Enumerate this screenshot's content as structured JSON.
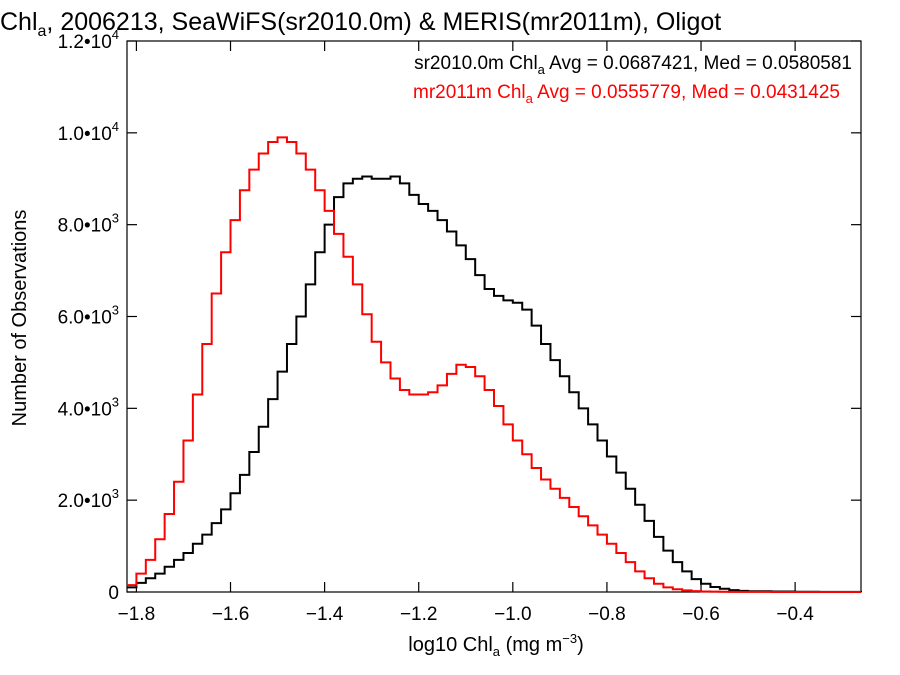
{
  "chart_data": {
    "type": "line",
    "title": {
      "prefix": "Chl",
      "sub": "a",
      "rest": ", 2006213, SeaWiFS(sr2010.0m) & MERIS(mr2011m), Oligot"
    },
    "xlabel": {
      "prefix": "log10 Chl",
      "sub": "a",
      "mid": " (mg m",
      "sup": "−3",
      "suffix": ")"
    },
    "ylabel": "Number of Observations",
    "xlim": [
      -1.82,
      -0.26
    ],
    "ylim": [
      0,
      12000
    ],
    "x_ticks": [
      {
        "value": -1.8,
        "label": "−1.8"
      },
      {
        "value": -1.6,
        "label": "−1.6"
      },
      {
        "value": -1.4,
        "label": "−1.4"
      },
      {
        "value": -1.2,
        "label": "−1.2"
      },
      {
        "value": -1.0,
        "label": "−1.0"
      },
      {
        "value": -0.8,
        "label": "−0.8"
      },
      {
        "value": -0.6,
        "label": "−0.6"
      },
      {
        "value": -0.4,
        "label": "−0.4"
      }
    ],
    "y_ticks": [
      {
        "value": 0,
        "mant": "0",
        "exp": ""
      },
      {
        "value": 2000,
        "mant": "2.0•10",
        "exp": "3"
      },
      {
        "value": 4000,
        "mant": "4.0•10",
        "exp": "3"
      },
      {
        "value": 6000,
        "mant": "6.0•10",
        "exp": "3"
      },
      {
        "value": 8000,
        "mant": "8.0•10",
        "exp": "3"
      },
      {
        "value": 10000,
        "mant": "1.0•10",
        "exp": "4"
      },
      {
        "value": 12000,
        "mant": "1.2•10",
        "exp": "4"
      }
    ],
    "legend": [
      {
        "prefix": "sr2010.0m Chl",
        "sub": "a",
        "rest": " Avg = 0.0687421, Med = 0.0580581",
        "color": "#000000"
      },
      {
        "prefix": "mr2011m Chl",
        "sub": "a",
        "rest": " Avg = 0.0555779, Med = 0.0431425",
        "color": "#ff0000"
      }
    ],
    "series": [
      {
        "color": "#000000",
        "x": [
          -1.82,
          -1.8,
          -1.78,
          -1.76,
          -1.74,
          -1.72,
          -1.7,
          -1.68,
          -1.66,
          -1.64,
          -1.62,
          -1.6,
          -1.58,
          -1.56,
          -1.54,
          -1.52,
          -1.5,
          -1.48,
          -1.46,
          -1.44,
          -1.42,
          -1.4,
          -1.38,
          -1.36,
          -1.34,
          -1.32,
          -1.3,
          -1.28,
          -1.26,
          -1.24,
          -1.22,
          -1.2,
          -1.18,
          -1.16,
          -1.14,
          -1.12,
          -1.1,
          -1.08,
          -1.06,
          -1.04,
          -1.02,
          -1.0,
          -0.98,
          -0.96,
          -0.94,
          -0.92,
          -0.9,
          -0.88,
          -0.86,
          -0.84,
          -0.82,
          -0.8,
          -0.78,
          -0.76,
          -0.74,
          -0.72,
          -0.7,
          -0.68,
          -0.66,
          -0.64,
          -0.62,
          -0.6,
          -0.58,
          -0.56,
          -0.54,
          -0.52,
          -0.5,
          -0.45,
          -0.4,
          -0.35,
          -0.3,
          -0.26
        ],
        "y": [
          100,
          200,
          300,
          400,
          550,
          700,
          850,
          1050,
          1250,
          1500,
          1800,
          2150,
          2550,
          3050,
          3600,
          4200,
          4800,
          5400,
          6000,
          6700,
          7400,
          8000,
          8600,
          8900,
          9000,
          9050,
          9000,
          9000,
          9050,
          8900,
          8650,
          8450,
          8300,
          8100,
          7850,
          7550,
          7250,
          6900,
          6600,
          6450,
          6350,
          6300,
          6150,
          5800,
          5400,
          5050,
          4700,
          4350,
          4000,
          3650,
          3300,
          2950,
          2600,
          2250,
          1900,
          1550,
          1200,
          900,
          650,
          450,
          280,
          180,
          110,
          70,
          40,
          25,
          15,
          10,
          5,
          3,
          2,
          0
        ]
      },
      {
        "color": "#ff0000",
        "x": [
          -1.82,
          -1.8,
          -1.78,
          -1.76,
          -1.74,
          -1.72,
          -1.7,
          -1.68,
          -1.66,
          -1.64,
          -1.62,
          -1.6,
          -1.58,
          -1.56,
          -1.54,
          -1.52,
          -1.5,
          -1.48,
          -1.46,
          -1.44,
          -1.42,
          -1.4,
          -1.38,
          -1.36,
          -1.34,
          -1.32,
          -1.3,
          -1.28,
          -1.26,
          -1.24,
          -1.22,
          -1.2,
          -1.18,
          -1.16,
          -1.14,
          -1.12,
          -1.1,
          -1.08,
          -1.06,
          -1.04,
          -1.02,
          -1.0,
          -0.98,
          -0.96,
          -0.94,
          -0.92,
          -0.9,
          -0.88,
          -0.86,
          -0.84,
          -0.82,
          -0.8,
          -0.78,
          -0.76,
          -0.74,
          -0.72,
          -0.7,
          -0.68,
          -0.66,
          -0.64,
          -0.62,
          -0.6,
          -0.58,
          -0.56,
          -0.54,
          -0.52,
          -0.5,
          -0.45,
          -0.4,
          -0.35,
          -0.3,
          -0.26
        ],
        "y": [
          150,
          400,
          700,
          1150,
          1700,
          2400,
          3300,
          4300,
          5400,
          6500,
          7400,
          8100,
          8750,
          9200,
          9550,
          9800,
          9900,
          9800,
          9550,
          9200,
          8750,
          8300,
          7800,
          7300,
          6700,
          6050,
          5450,
          5000,
          4650,
          4400,
          4300,
          4300,
          4350,
          4500,
          4750,
          4950,
          4900,
          4700,
          4400,
          4050,
          3650,
          3300,
          3000,
          2700,
          2450,
          2250,
          2050,
          1850,
          1650,
          1450,
          1250,
          1050,
          850,
          650,
          450,
          300,
          180,
          100,
          60,
          35,
          20,
          12,
          8,
          5,
          4,
          3,
          2,
          1,
          1,
          0,
          0,
          0
        ]
      }
    ]
  }
}
